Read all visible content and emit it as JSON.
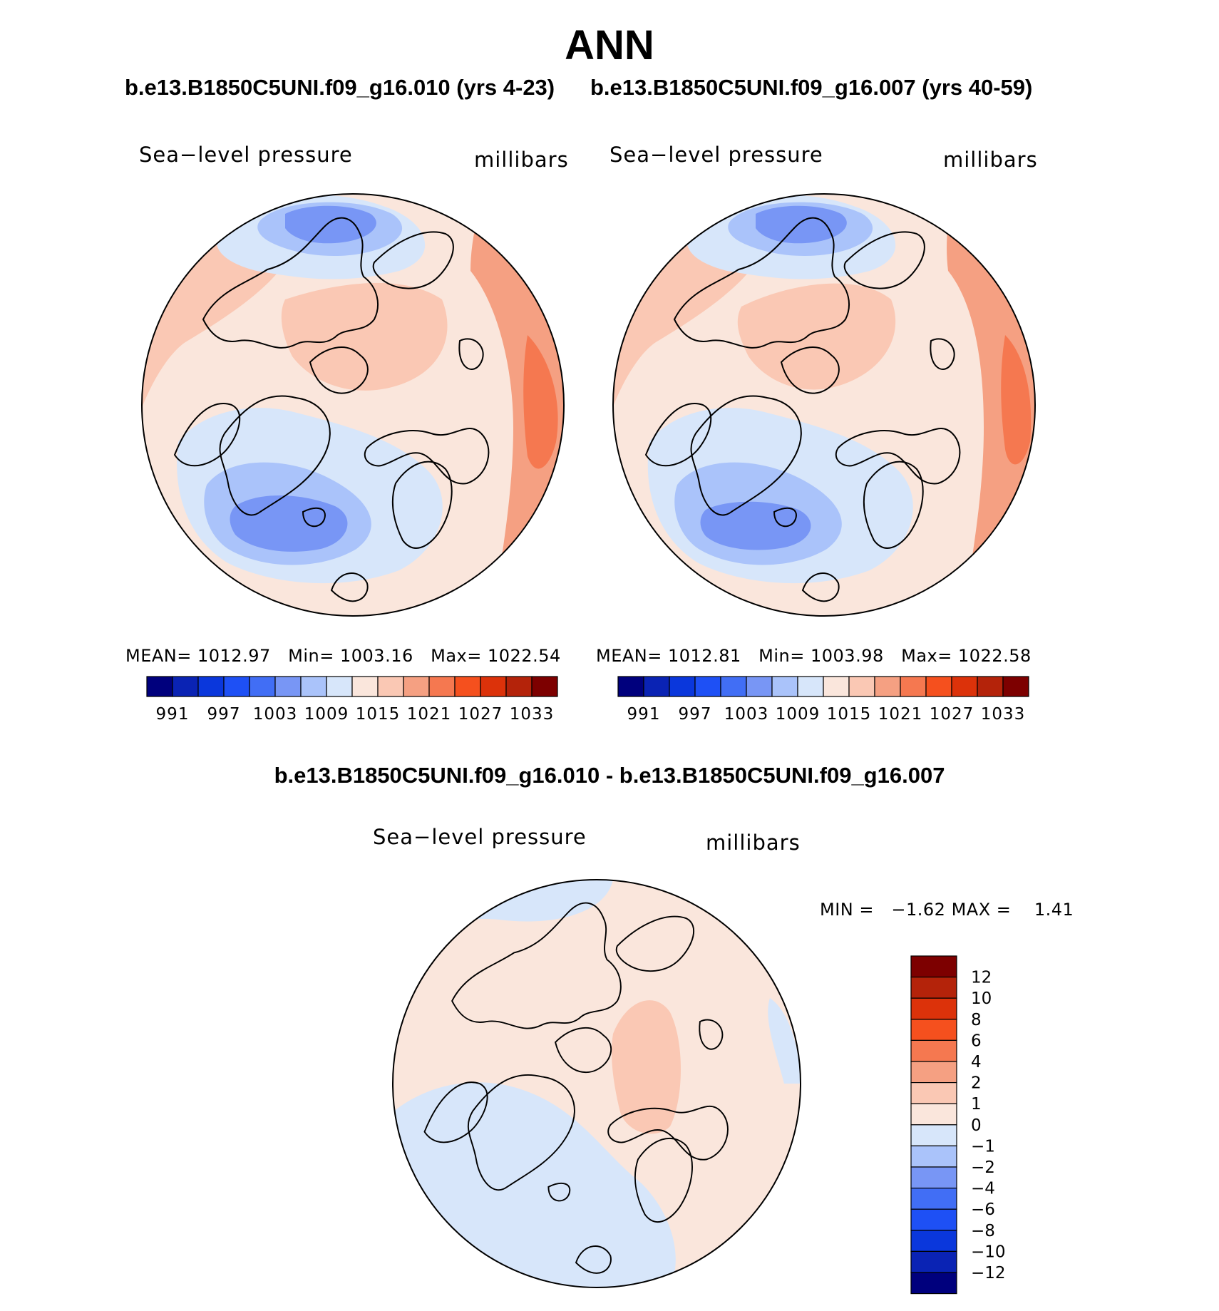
{
  "figure_title": "ANN",
  "diff_title": "b.e13.B1850C5UNI.f09_g16.010 - b.e13.B1850C5UNI.f09_g16.007",
  "colors": {
    "pressure_palette": [
      "#00007d",
      "#0a23b4",
      "#0a37dc",
      "#1e50f5",
      "#416ef5",
      "#7896f5",
      "#aac3fa",
      "#d7e6fa",
      "#fae6dc",
      "#fac8b4",
      "#f5a082",
      "#f57850",
      "#f5501e",
      "#dc320a",
      "#b4230a",
      "#7d0000"
    ],
    "land_outline": "#000000"
  },
  "chart_data": [
    {
      "type": "heatmap",
      "projection": "north-polar-stereographic",
      "subtitle": "b.e13.B1850C5UNI.f09_g16.010 (yrs 4-23)",
      "variable": "Sea−level pressure",
      "units": "millibars",
      "stats": {
        "mean_label": "MEAN=",
        "mean": "1012.97",
        "min_label": "Min=",
        "min": "1003.16",
        "max_label": "Max=",
        "max": "1022.54"
      },
      "colorbar_ticks": [
        "991",
        "997",
        "1003",
        "1009",
        "1015",
        "1021",
        "1027",
        "1033"
      ],
      "colorbar_levels": [
        991,
        994,
        997,
        1000,
        1003,
        1006,
        1009,
        1012,
        1015,
        1018,
        1021,
        1024,
        1027,
        1030,
        1033
      ]
    },
    {
      "type": "heatmap",
      "projection": "north-polar-stereographic",
      "subtitle": "b.e13.B1850C5UNI.f09_g16.007 (yrs 40-59)",
      "variable": "Sea−level pressure",
      "units": "millibars",
      "stats": {
        "mean_label": "MEAN=",
        "mean": "1012.81",
        "min_label": "Min=",
        "min": "1003.98",
        "max_label": "Max=",
        "max": "1022.58"
      },
      "colorbar_ticks": [
        "991",
        "997",
        "1003",
        "1009",
        "1015",
        "1021",
        "1027",
        "1033"
      ],
      "colorbar_levels": [
        991,
        994,
        997,
        1000,
        1003,
        1006,
        1009,
        1012,
        1015,
        1018,
        1021,
        1024,
        1027,
        1030,
        1033
      ]
    },
    {
      "type": "heatmap",
      "projection": "north-polar-stereographic",
      "subtitle": "b.e13.B1850C5UNI.f09_g16.010 - b.e13.B1850C5UNI.f09_g16.007",
      "variable": "Sea−level pressure",
      "units": "millibars",
      "stats": {
        "min_label": "MIN =",
        "min": "−1.62",
        "max_label": "MAX =",
        "max": "1.41"
      },
      "colorbar_ticks": [
        "12",
        "10",
        "8",
        "6",
        "4",
        "2",
        "1",
        "0",
        "−1",
        "−2",
        "−4",
        "−6",
        "−8",
        "−10",
        "−12"
      ],
      "colorbar_levels": [
        12,
        10,
        8,
        6,
        4,
        2,
        1,
        0,
        -1,
        -2,
        -4,
        -6,
        -8,
        -10,
        -12
      ]
    }
  ]
}
